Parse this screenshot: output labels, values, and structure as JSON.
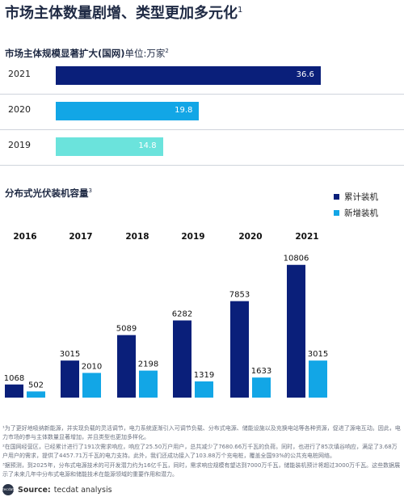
{
  "header": {
    "title": "市场主体数量剧增、类型更加多元化",
    "title_note": "1"
  },
  "chart1": {
    "title": "市场主体规模显著扩大(国网)",
    "unit_label": "单位:万家",
    "title_note": "2"
  },
  "chart2": {
    "title": "分布式光伏装机容量",
    "title_note": "3"
  },
  "chart_data": [
    {
      "type": "bar",
      "orientation": "horizontal",
      "title": "市场主体规模显著扩大(国网)",
      "unit": "万家",
      "categories": [
        "2021",
        "2020",
        "2019"
      ],
      "values": [
        36.6,
        19.8,
        14.8
      ],
      "bar_colors": [
        "#0a1f7a",
        "#12a6e6",
        "#6be3dc"
      ],
      "xlim": [
        0,
        48
      ]
    },
    {
      "type": "bar",
      "title": "分布式光伏装机容量",
      "categories": [
        "2016",
        "2017",
        "2018",
        "2019",
        "2020",
        "2021"
      ],
      "series": [
        {
          "name": "累计装机",
          "color": "#0a1f7a",
          "values": [
            1068,
            3015,
            5089,
            6282,
            7853,
            10806
          ]
        },
        {
          "name": "新增装机",
          "color": "#12a6e6",
          "values": [
            502,
            2010,
            2198,
            1319,
            1633,
            3015
          ]
        }
      ],
      "ylim": [
        0,
        12500
      ],
      "legend": "top-right",
      "grid": false
    }
  ],
  "notes": [
    "¹为了更好地吸纳新能源，并实现负载的灵活调节，电力系统逐渐引入可调节负载、分布式电源、储能设施以及充换电站等各种资源，促进了源电互动。因此，电力市场的参与主体数量显著增加，并且类型也更加多样化。",
    "²在国网经营区，已经累计进行了191次需求响应，响应了25.50万户用户，总共减少了7680.66万千瓦的负荷。同时，也进行了85次填谷响应，满足了3.68万户用户的需求，提供了4457.71万千瓦的电力支持。此外，我们还成功接入了103.88万个充电桩，覆盖全国93%的公共充电桩网络。",
    "³据预测，到2025年，分布式电源技术的可开发潜力约为16亿千瓦，同时，需求响应规模有望达到7000万千瓦，储能装机预计将超过3000万千瓦。这些数据展示了未来几年中分布式电源和储能技术在能源领域的重要作用和潜力。"
  ],
  "source": {
    "label": "Source:",
    "text": "tecdat analysis",
    "logo_text": "tecdat"
  }
}
